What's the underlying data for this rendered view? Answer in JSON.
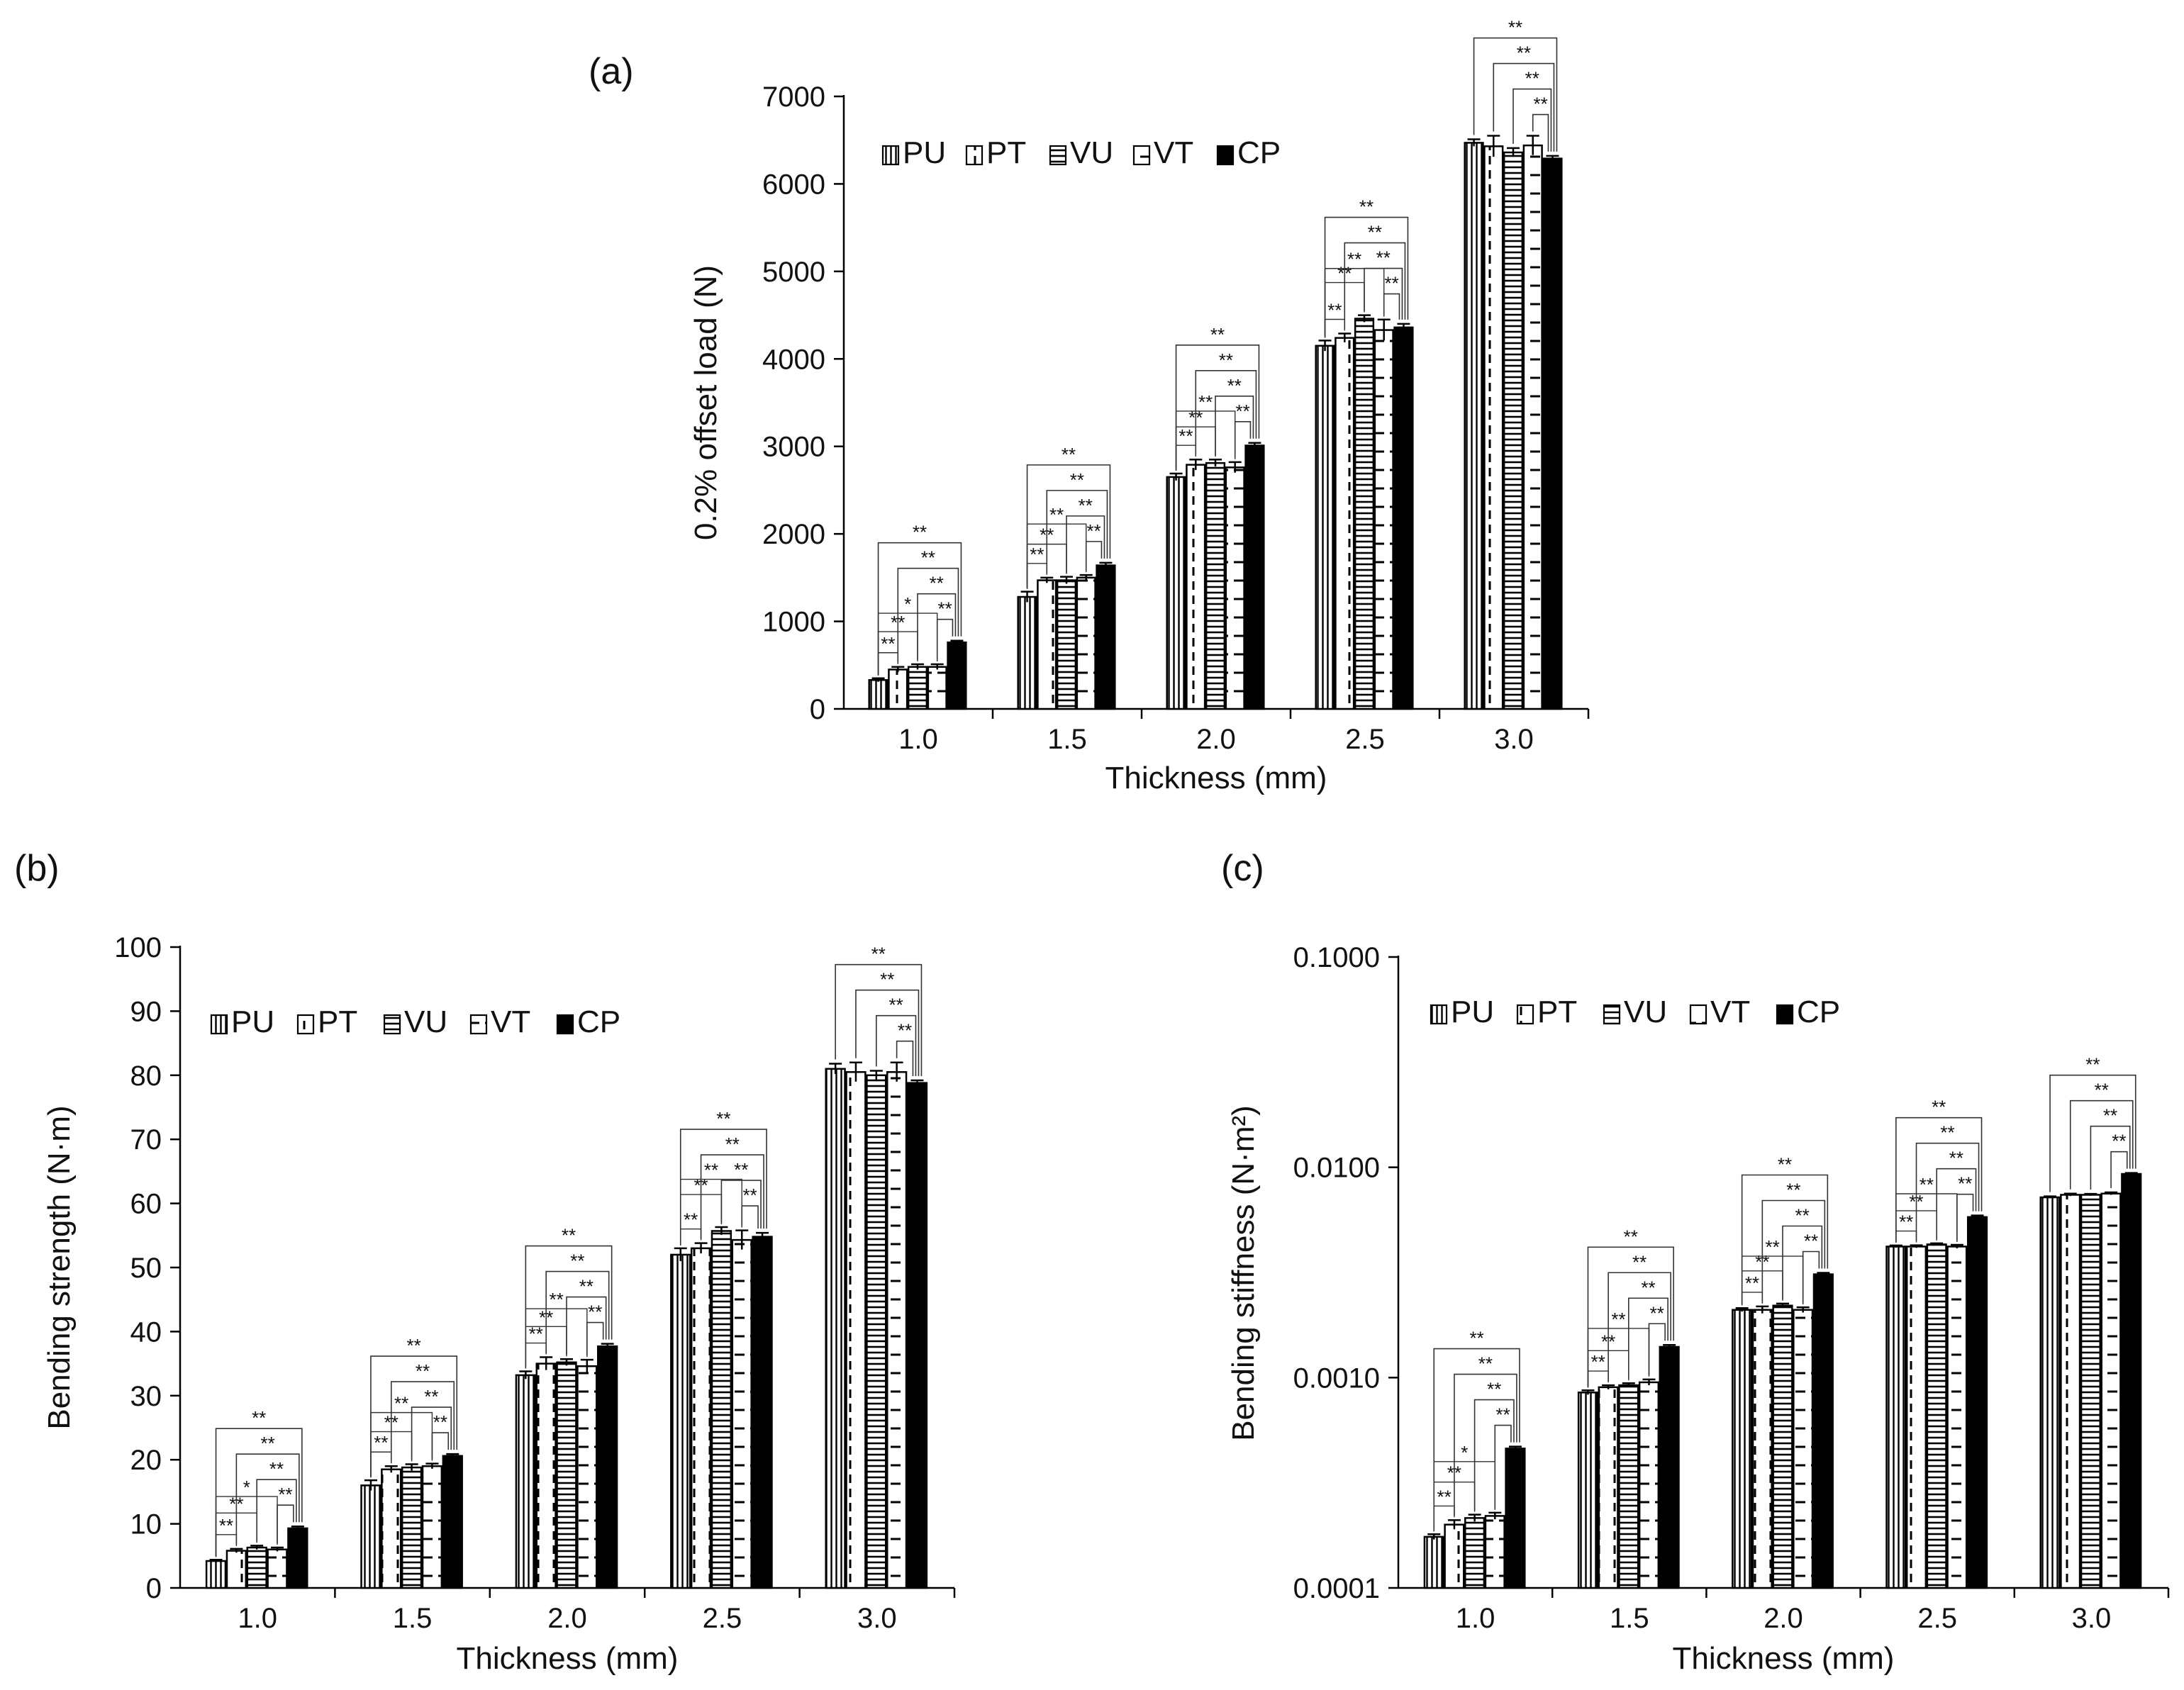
{
  "chart_data": [
    {
      "id": "a",
      "panel_label": "(a)",
      "type": "bar",
      "scale": "linear",
      "xlabel": "Thickness (mm)",
      "ylabel": "0.2% offset load (N)",
      "ylim": [
        0,
        7000
      ],
      "yticks": [
        0,
        1000,
        2000,
        3000,
        4000,
        5000,
        6000,
        7000
      ],
      "ytick_labels": [
        "0",
        "1000",
        "2000",
        "3000",
        "4000",
        "5000",
        "6000",
        "7000"
      ],
      "categories": [
        "1.0",
        "1.5",
        "2.0",
        "2.5",
        "3.0"
      ],
      "legend_position": "top-left",
      "series": [
        {
          "name": "PU",
          "pattern": "vlines",
          "values": [
            330,
            1280,
            2650,
            4150,
            6470
          ],
          "errors": [
            20,
            60,
            40,
            60,
            40
          ]
        },
        {
          "name": "PT",
          "pattern": "vdash",
          "values": [
            450,
            1470,
            2790,
            4240,
            6430
          ],
          "errors": [
            30,
            30,
            60,
            50,
            120
          ]
        },
        {
          "name": "VU",
          "pattern": "hlines",
          "values": [
            480,
            1470,
            2810,
            4460,
            6360
          ],
          "errors": [
            30,
            40,
            40,
            40,
            50
          ]
        },
        {
          "name": "VT",
          "pattern": "hdash",
          "values": [
            480,
            1500,
            2760,
            4330,
            6440
          ],
          "errors": [
            30,
            30,
            60,
            120,
            110
          ]
        },
        {
          "name": "CP",
          "pattern": "solid",
          "values": [
            760,
            1640,
            3010,
            4360,
            6290
          ],
          "errors": [
            20,
            30,
            30,
            40,
            30
          ]
        }
      ],
      "significance_label": "**",
      "single_star_label": "*"
    },
    {
      "id": "b",
      "panel_label": "(b)",
      "type": "bar",
      "scale": "linear",
      "xlabel": "Thickness (mm)",
      "ylabel": "Bending strength (N·m)",
      "ylim": [
        0,
        100
      ],
      "yticks": [
        0,
        10,
        20,
        30,
        40,
        50,
        60,
        70,
        80,
        90,
        100
      ],
      "ytick_labels": [
        "0",
        "10",
        "20",
        "30",
        "40",
        "50",
        "60",
        "70",
        "80",
        "90",
        "100"
      ],
      "categories": [
        "1.0",
        "1.5",
        "2.0",
        "2.5",
        "3.0"
      ],
      "legend_position": "top-left",
      "series": [
        {
          "name": "PU",
          "pattern": "vlines",
          "values": [
            4.2,
            16.0,
            33.2,
            52.0,
            81.0
          ],
          "errors": [
            0.2,
            0.8,
            0.6,
            1.0,
            0.8
          ]
        },
        {
          "name": "PT",
          "pattern": "vdash",
          "values": [
            5.8,
            18.5,
            35.0,
            53.0,
            80.5
          ],
          "errors": [
            0.3,
            0.5,
            1.0,
            0.8,
            1.5
          ]
        },
        {
          "name": "VU",
          "pattern": "hlines",
          "values": [
            6.3,
            18.8,
            35.2,
            55.7,
            80.0
          ],
          "errors": [
            0.3,
            0.5,
            0.5,
            0.6,
            0.7
          ]
        },
        {
          "name": "VT",
          "pattern": "hdash",
          "values": [
            6.0,
            19.0,
            34.6,
            54.3,
            80.5
          ],
          "errors": [
            0.3,
            0.4,
            1.0,
            1.5,
            1.5
          ]
        },
        {
          "name": "CP",
          "pattern": "solid",
          "values": [
            9.3,
            20.6,
            37.7,
            54.8,
            78.8
          ],
          "errors": [
            0.3,
            0.3,
            0.4,
            0.6,
            0.4
          ]
        }
      ],
      "significance_label": "**",
      "single_star_label": "*"
    },
    {
      "id": "c",
      "panel_label": "(c)",
      "type": "bar",
      "scale": "log",
      "xlabel": "Thickness (mm)",
      "ylabel": "Bending stiffness (N·m²)",
      "ylim": [
        0.0001,
        0.1
      ],
      "yticks": [
        0.0001,
        0.001,
        0.01,
        0.1
      ],
      "ytick_labels": [
        "0.0001",
        "0.0010",
        "0.0100",
        "0.1000"
      ],
      "categories": [
        "1.0",
        "1.5",
        "2.0",
        "2.5",
        "3.0"
      ],
      "legend_position": "top-left",
      "series": [
        {
          "name": "PU",
          "pattern": "vlines",
          "values": [
            0.000175,
            0.00085,
            0.0021,
            0.0042,
            0.0072
          ],
          "errors": [
            5e-06,
            2e-05,
            4e-05,
            5e-05,
            8e-05
          ]
        },
        {
          "name": "PT",
          "pattern": "vdash",
          "values": [
            0.0002,
            0.0009,
            0.0021,
            0.0042,
            0.0074
          ],
          "errors": [
            1e-05,
            2e-05,
            8e-05,
            6e-05,
            0.0001
          ]
        },
        {
          "name": "VU",
          "pattern": "hlines",
          "values": [
            0.000215,
            0.00092,
            0.0022,
            0.0043,
            0.0074
          ],
          "errors": [
            8e-06,
            2e-05,
            5e-05,
            5e-05,
            8e-05
          ]
        },
        {
          "name": "VT",
          "pattern": "hdash",
          "values": [
            0.00022,
            0.00095,
            0.0021,
            0.0042,
            0.0075
          ],
          "errors": [
            8e-06,
            3e-05,
            6e-05,
            8e-05,
            0.0001
          ]
        },
        {
          "name": "CP",
          "pattern": "solid",
          "values": [
            0.00046,
            0.0014,
            0.0031,
            0.0058,
            0.0093
          ],
          "errors": [
            1e-05,
            3e-05,
            5e-05,
            0.0001,
            0.0001
          ]
        }
      ],
      "significance_label": "**",
      "single_star_label": "*"
    }
  ]
}
